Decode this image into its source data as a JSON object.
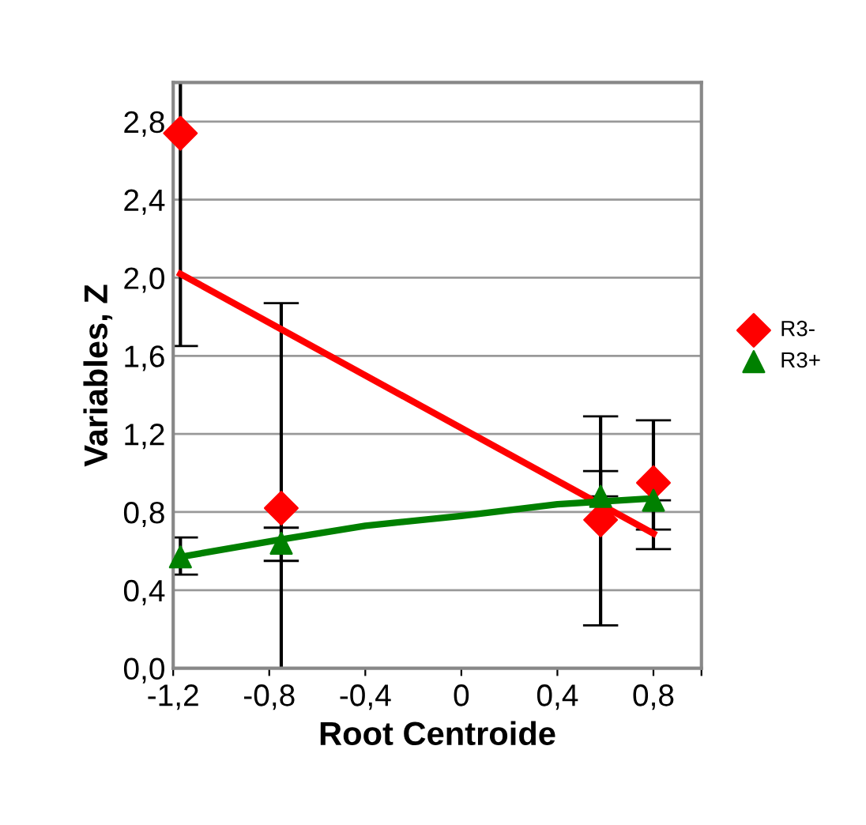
{
  "chart_data": {
    "type": "scatter",
    "xlabel": "Root Centroide",
    "ylabel": "Variables, Z",
    "xlim": [
      -1.2,
      1.0
    ],
    "xticks": [
      {
        "value": -1.2,
        "label": "-1,2"
      },
      {
        "value": -0.8,
        "label": "-0,8"
      },
      {
        "value": -0.4,
        "label": "-0,4"
      },
      {
        "value": 0,
        "label": "0"
      },
      {
        "value": 0.4,
        "label": "0,4"
      },
      {
        "value": 0.8,
        "label": "0,8"
      },
      {
        "value": 1.0,
        "label": null
      }
    ],
    "ylim": [
      0,
      3.0
    ],
    "yticks": [
      {
        "value": 0,
        "label": "0,0"
      },
      {
        "value": 0.4,
        "label": "0,4"
      },
      {
        "value": 0.8,
        "label": "0,8"
      },
      {
        "value": 1.2,
        "label": "1,2"
      },
      {
        "value": 1.6,
        "label": "1,6"
      },
      {
        "value": 2.0,
        "label": "2,0"
      },
      {
        "value": 2.4,
        "label": "2,4"
      },
      {
        "value": 2.8,
        "label": "2,8"
      },
      {
        "value": 3.0,
        "label": null
      }
    ],
    "grid": "y",
    "legend": "right",
    "series": [
      {
        "name": "R3-",
        "marker": "diamond",
        "color": "#ff0000",
        "x": [
          -1.17,
          -0.75,
          0.58,
          0.8
        ],
        "values": [
          2.74,
          0.82,
          0.76,
          0.95
        ],
        "errors": [
          [
            1.65,
            3.0
          ],
          [
            0,
            1.87
          ],
          [
            0.22,
            1.29
          ],
          [
            0.61,
            1.27
          ]
        ]
      },
      {
        "name": "R3+",
        "marker": "triangle",
        "color": "#008000",
        "x": [
          -1.17,
          -0.75,
          0.58,
          0.8
        ],
        "values": [
          0.57,
          0.64,
          0.88,
          0.86
        ],
        "errors": [
          [
            0.48,
            0.67
          ],
          [
            0.55,
            0.72
          ],
          [
            0.88,
            1.01
          ],
          [
            0.71,
            0.86
          ]
        ]
      },
      {
        "type": "line",
        "color": "#ff0000",
        "marker": "none",
        "x": [
          -1.17,
          0.8
        ],
        "values": [
          2.02,
          0.69
        ]
      },
      {
        "type": "line",
        "color": "#008000",
        "marker": "none",
        "x": [
          -1.17,
          -0.75,
          -0.4,
          0,
          0.4,
          0.8
        ],
        "values": [
          0.57,
          0.66,
          0.73,
          0.78,
          0.84,
          0.87
        ]
      }
    ]
  }
}
